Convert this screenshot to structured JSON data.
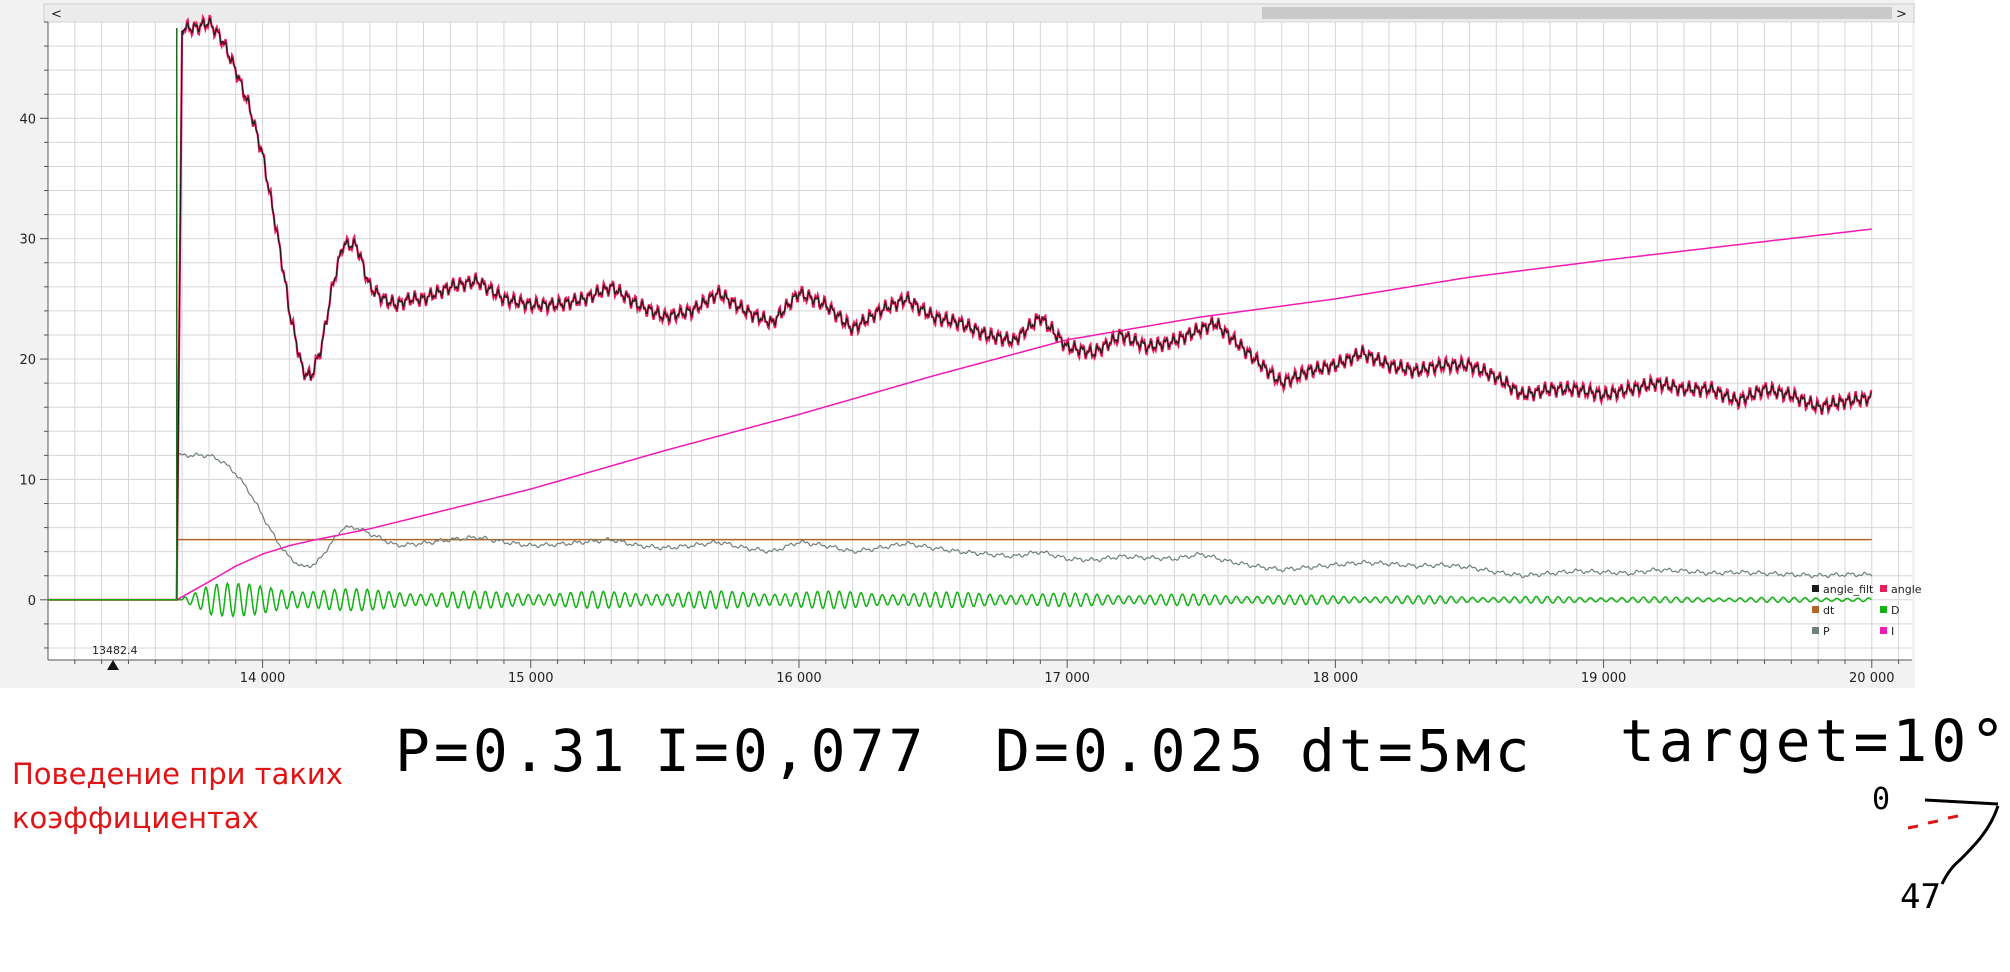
{
  "caption": "Поведение при таких коэффициентах",
  "notes": {
    "p": "P=0.31",
    "i": "I=0,077",
    "d": "D=0.025",
    "dt": "dt=5мс",
    "target": "target=10°",
    "sketch_top": "0",
    "sketch_bottom": "47"
  },
  "cursor_label": "13482.4",
  "scrollbar": {
    "left_arrow": "<",
    "right_arrow": ">"
  },
  "colors": {
    "angle_filt": "#1a1a1a",
    "angle": "#e8205a",
    "dt": "#b0652a",
    "D": "#12b112",
    "P": "#6f8078",
    "I": "#f01ab4",
    "step": "#1f6d1f",
    "grid": "#d6d6d6"
  },
  "legend": [
    {
      "key": "angle_filt",
      "label": "angle_filt",
      "color": "#1a1a1a"
    },
    {
      "key": "angle",
      "label": "angle",
      "color": "#e8205a"
    },
    {
      "key": "dt",
      "label": "dt",
      "color": "#b0652a"
    },
    {
      "key": "D",
      "label": "D",
      "color": "#12b112"
    },
    {
      "key": "P",
      "label": "P",
      "color": "#6f8078"
    },
    {
      "key": "I",
      "label": "I",
      "color": "#f01ab4"
    }
  ],
  "chart_data": {
    "type": "line",
    "title": "",
    "xlabel": "",
    "ylabel": "",
    "xlim": [
      13200,
      20150
    ],
    "ylim": [
      -5,
      48
    ],
    "x_ticks": [
      14000,
      15000,
      16000,
      17000,
      18000,
      19000,
      20000
    ],
    "x_tick_labels": [
      "14 000",
      "15 000",
      "16 000",
      "17 000",
      "18 000",
      "19 000",
      "20 000"
    ],
    "y_ticks": [
      0,
      10,
      20,
      30,
      40
    ],
    "y_tick_labels": [
      "0",
      "10",
      "20",
      "30",
      "40"
    ],
    "grid": true,
    "legend_position": "bottom-right",
    "series": [
      {
        "name": "angle_filt",
        "x": [
          13200,
          13680,
          13700,
          13750,
          13800,
          13850,
          13900,
          13950,
          14000,
          14050,
          14080,
          14100,
          14150,
          14180,
          14220,
          14260,
          14300,
          14350,
          14400,
          14450,
          14500,
          14550,
          14600,
          14700,
          14800,
          14900,
          15000,
          15100,
          15200,
          15300,
          15400,
          15500,
          15600,
          15700,
          15800,
          15900,
          16000,
          16100,
          16200,
          16300,
          16400,
          16500,
          16600,
          16700,
          16800,
          16900,
          17000,
          17100,
          17200,
          17300,
          17400,
          17500,
          17550,
          17600,
          17700,
          17800,
          17900,
          18000,
          18100,
          18200,
          18300,
          18400,
          18500,
          18600,
          18700,
          18800,
          18900,
          19000,
          19100,
          19200,
          19300,
          19400,
          19500,
          19600,
          19700,
          19800,
          19900,
          20000
        ],
        "y": [
          0,
          0,
          47.5,
          47.5,
          48,
          46.5,
          44,
          41,
          37,
          31,
          27,
          24,
          19,
          18.5,
          21,
          26,
          29.5,
          29.5,
          26,
          25,
          24.5,
          25,
          25,
          26,
          26.5,
          25,
          24.5,
          24.5,
          25,
          26,
          24.5,
          23.5,
          24,
          25.5,
          24,
          23,
          25.5,
          24.5,
          22.5,
          24,
          25,
          23.5,
          23,
          22,
          21.5,
          23.5,
          21,
          20.5,
          22,
          21,
          21.5,
          22.5,
          23,
          22,
          20,
          18,
          19,
          19.5,
          20.5,
          19.5,
          19,
          19.5,
          19.5,
          18.5,
          17,
          17.5,
          17.5,
          17,
          17.5,
          18,
          17.5,
          17.5,
          16.5,
          17.5,
          17,
          16,
          16.5,
          16.8
        ]
      },
      {
        "name": "angle",
        "x": [
          13200,
          13680,
          13700,
          13750,
          13800,
          13850,
          13900,
          13950,
          14000,
          14050,
          14080,
          14100,
          14150,
          14180,
          14220,
          14260,
          14300,
          14350,
          14400,
          14450,
          14500,
          14550,
          14600,
          14700,
          14800,
          14900,
          15000,
          15100,
          15200,
          15300,
          15400,
          15500,
          15600,
          15700,
          15800,
          15900,
          16000,
          16100,
          16200,
          16300,
          16400,
          16500,
          16600,
          16700,
          16800,
          16900,
          17000,
          17100,
          17200,
          17300,
          17400,
          17500,
          17550,
          17600,
          17700,
          17800,
          17900,
          18000,
          18100,
          18200,
          18300,
          18400,
          18500,
          18600,
          18700,
          18800,
          18900,
          19000,
          19100,
          19200,
          19300,
          19400,
          19500,
          19600,
          19700,
          19800,
          19900,
          20000
        ],
        "y": [
          0,
          0,
          47.5,
          47.5,
          48,
          46.5,
          44,
          41,
          37,
          31,
          27,
          24,
          19,
          18.5,
          21,
          26,
          29.5,
          29.5,
          26,
          25,
          24.5,
          25,
          25,
          26,
          26.5,
          25,
          24.5,
          24.5,
          25,
          26,
          24.5,
          23.5,
          24,
          25.5,
          24,
          23,
          25.5,
          24.5,
          22.5,
          24,
          25,
          23.5,
          23,
          22,
          21.5,
          23.5,
          21,
          20.5,
          22,
          21,
          21.5,
          22.5,
          23,
          22,
          20,
          18,
          19,
          19.5,
          20.5,
          19.5,
          19,
          19.5,
          19.5,
          18.5,
          17,
          17.5,
          17.5,
          17,
          17.5,
          18,
          17.5,
          17.5,
          16.5,
          17.5,
          17,
          16,
          16.5,
          16.8
        ]
      },
      {
        "name": "dt",
        "x": [
          13680,
          20000
        ],
        "y": [
          5,
          5
        ]
      },
      {
        "name": "D",
        "x": [
          13200,
          13680,
          13800,
          14000,
          14200,
          14600,
          15000,
          16000,
          17000,
          18000,
          19000,
          20000
        ],
        "y": [
          0,
          0,
          0,
          0,
          0,
          0,
          0,
          0,
          0,
          0,
          0,
          0
        ],
        "amplitude": [
          0,
          0,
          1.2,
          1.0,
          0.8,
          0.6,
          0.55,
          0.6,
          0.45,
          0.3,
          0.2,
          0.15
        ]
      },
      {
        "name": "P",
        "x": [
          13680,
          13800,
          13850,
          13900,
          13950,
          14000,
          14050,
          14100,
          14150,
          14200,
          14250,
          14300,
          14350,
          14400,
          14450,
          14500,
          14600,
          14700,
          14800,
          14900,
          15000,
          15100,
          15200,
          15300,
          15400,
          15500,
          15600,
          15700,
          15800,
          15900,
          16000,
          16100,
          16200,
          16300,
          16400,
          16500,
          16600,
          16700,
          16800,
          16900,
          17000,
          17100,
          17200,
          17300,
          17400,
          17500,
          17600,
          17700,
          17800,
          17900,
          18000,
          18100,
          18200,
          18300,
          18400,
          18500,
          18600,
          18700,
          18800,
          18900,
          19000,
          19100,
          19200,
          19300,
          19400,
          19500,
          19600,
          19700,
          19800,
          19900,
          20000
        ],
        "y": [
          12,
          12,
          11.5,
          10.5,
          9,
          7,
          5,
          3.5,
          2.7,
          3,
          4.5,
          6,
          6,
          5.5,
          5,
          4.5,
          4.7,
          5,
          5.2,
          4.8,
          4.5,
          4.6,
          4.8,
          5,
          4.5,
          4.3,
          4.5,
          4.8,
          4.3,
          4,
          4.8,
          4.5,
          4,
          4.3,
          4.7,
          4.3,
          4,
          3.8,
          3.6,
          4,
          3.4,
          3.3,
          3.6,
          3.5,
          3.4,
          3.8,
          3.2,
          2.8,
          2.5,
          2.7,
          2.9,
          3.1,
          3,
          2.8,
          2.9,
          2.7,
          2.3,
          2,
          2.2,
          2.4,
          2.3,
          2.2,
          2.5,
          2.4,
          2.2,
          2.3,
          2.2,
          2.1,
          2,
          2.1,
          2.1
        ]
      },
      {
        "name": "I",
        "x": [
          13680,
          13800,
          13900,
          14000,
          14100,
          14200,
          14400,
          14600,
          15000,
          15500,
          16000,
          16500,
          17000,
          17500,
          18000,
          18500,
          19000,
          19500,
          20000
        ],
        "y": [
          0,
          1.5,
          2.8,
          3.8,
          4.5,
          5,
          5.9,
          7,
          9.2,
          12.4,
          15.4,
          18.6,
          21.6,
          23.5,
          25,
          26.8,
          28.2,
          29.5,
          30.8
        ]
      }
    ],
    "step": {
      "x": 13680,
      "y": [
        0,
        47.5
      ],
      "y_secondary": 12
    }
  }
}
